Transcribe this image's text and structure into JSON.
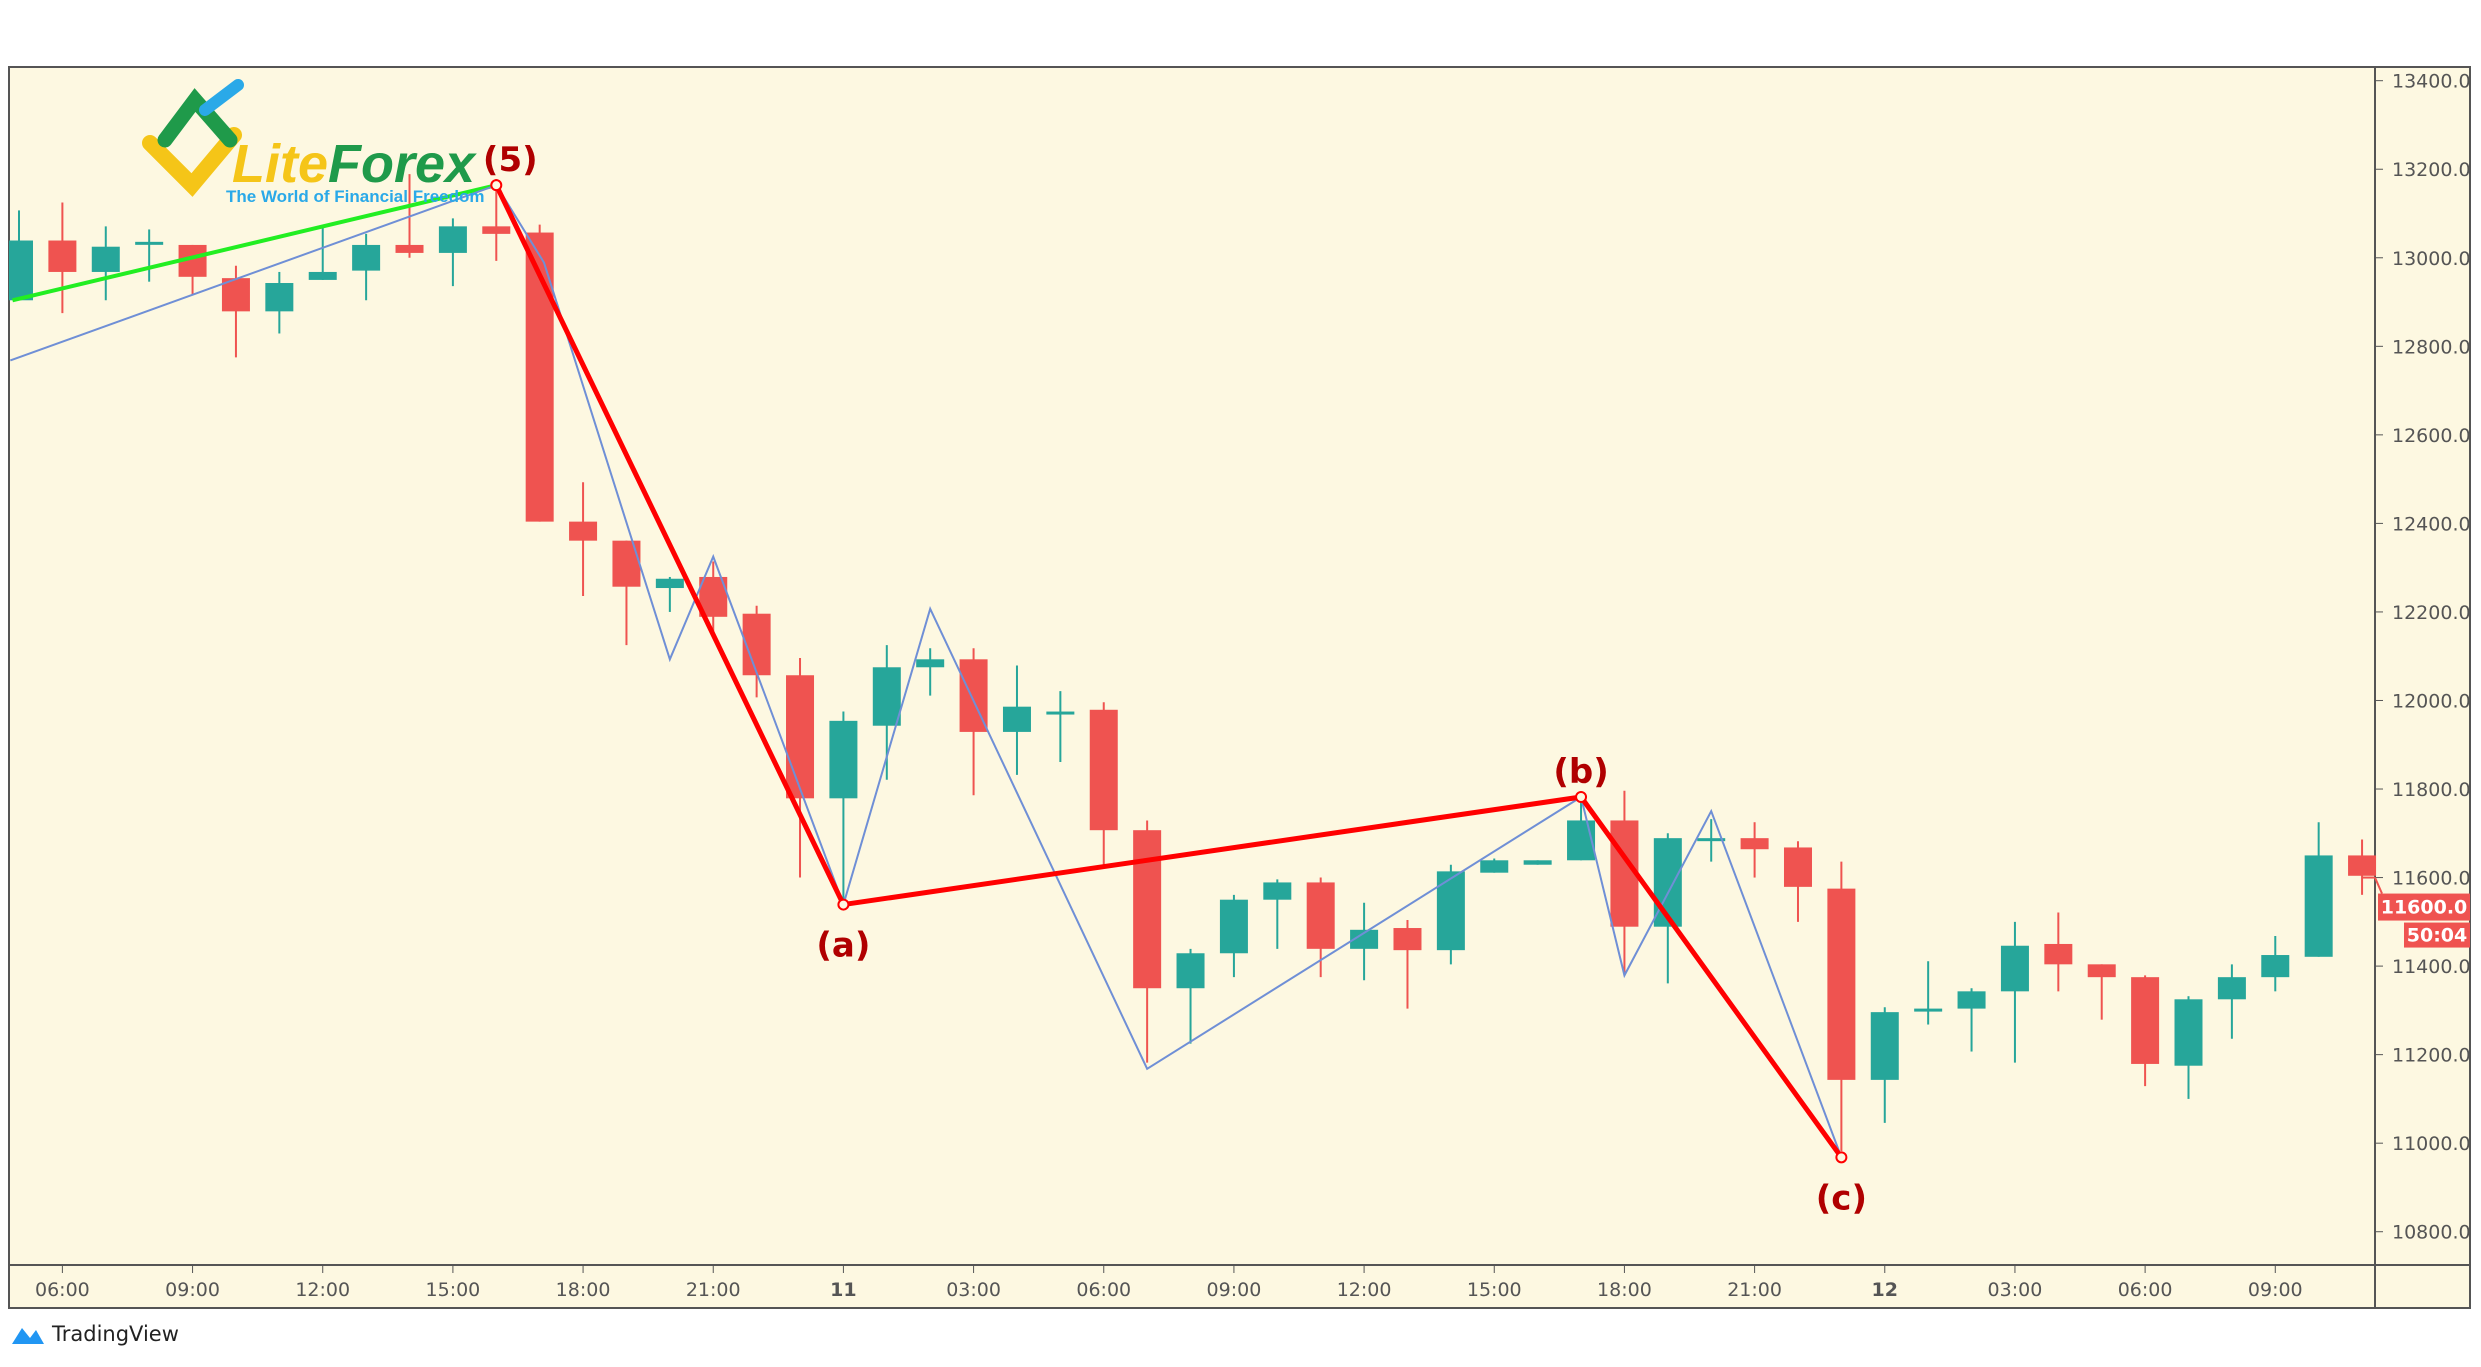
{
  "brand": {
    "logo_text_1": "Lite",
    "logo_text_2": "Forex",
    "tagline": "The World of Financial Freedom",
    "footer": "TradingView"
  },
  "colors": {
    "background": "#fdf8e1",
    "up": "#26a69a",
    "down": "#ef5350",
    "wave": "#ff0000",
    "zigzag": "#6f8fd6",
    "trend": "#22ee22",
    "label": "#b00000"
  },
  "chart_data": {
    "type": "candlestick",
    "ylim": [
      10700,
      13450
    ],
    "yticks": [
      13400,
      13200,
      13000,
      12800,
      12600,
      12400,
      12200,
      12000,
      11800,
      11600,
      11400,
      11200,
      11000,
      10800
    ],
    "ytick_labels": [
      "13400.0",
      "13200.0",
      "13000.0",
      "12800.0",
      "12600.0",
      "12400.0",
      "12200.0",
      "12000.0",
      "11800.0",
      "11600.0",
      "11400.0",
      "11200.0",
      "11000.0",
      "10800.0"
    ],
    "xticks": [
      {
        "i": 1,
        "label": "06:00"
      },
      {
        "i": 4,
        "label": "09:00"
      },
      {
        "i": 7,
        "label": "12:00"
      },
      {
        "i": 10,
        "label": "15:00"
      },
      {
        "i": 13,
        "label": "18:00"
      },
      {
        "i": 16,
        "label": "21:00"
      },
      {
        "i": 19,
        "label": "11"
      },
      {
        "i": 22,
        "label": "03:00"
      },
      {
        "i": 25,
        "label": "06:00"
      },
      {
        "i": 28,
        "label": "09:00"
      },
      {
        "i": 31,
        "label": "12:00"
      },
      {
        "i": 34,
        "label": "15:00"
      },
      {
        "i": 37,
        "label": "18:00"
      },
      {
        "i": 40,
        "label": "21:00"
      },
      {
        "i": 43,
        "label": "12"
      },
      {
        "i": 46,
        "label": "03:00"
      },
      {
        "i": 49,
        "label": "06:00"
      },
      {
        "i": 52,
        "label": "09:00"
      }
    ],
    "ohlc": [
      [
        12904,
        13107,
        12904,
        13039
      ],
      [
        13039,
        13125,
        12875,
        12968
      ],
      [
        12968,
        13071,
        12904,
        13025
      ],
      [
        13036,
        13064,
        12946,
        13036
      ],
      [
        13029,
        13029,
        12918,
        12957
      ],
      [
        12954,
        12982,
        12775,
        12879
      ],
      [
        12879,
        12968,
        12829,
        12943
      ],
      [
        12950,
        13071,
        12950,
        12968
      ],
      [
        12971,
        13054,
        12904,
        13029
      ],
      [
        13029,
        13189,
        13000,
        13011
      ],
      [
        13011,
        13089,
        12936,
        13071
      ],
      [
        13071,
        13178,
        12993,
        13054
      ],
      [
        13057,
        13075,
        12404,
        12404
      ],
      [
        12404,
        12493,
        12236,
        12361
      ],
      [
        12361,
        12361,
        12125,
        12257
      ],
      [
        12254,
        12279,
        12200,
        12275
      ],
      [
        12279,
        12314,
        12150,
        12189
      ],
      [
        12196,
        12214,
        12007,
        12057
      ],
      [
        12057,
        12096,
        11600,
        11779
      ],
      [
        11779,
        11975,
        11529,
        11954
      ],
      [
        11943,
        12125,
        11821,
        12075
      ],
      [
        12075,
        12118,
        12011,
        12093
      ],
      [
        12093,
        12118,
        11786,
        11929
      ],
      [
        11929,
        12079,
        11832,
        11986
      ],
      [
        11975,
        12021,
        11861,
        11975
      ],
      [
        11979,
        11996,
        11621,
        11707
      ],
      [
        11707,
        11729,
        11182,
        11350
      ],
      [
        11350,
        11439,
        11225,
        11429
      ],
      [
        11429,
        11561,
        11375,
        11550
      ],
      [
        11550,
        11596,
        11439,
        11589
      ],
      [
        11589,
        11600,
        11375,
        11439
      ],
      [
        11439,
        11543,
        11368,
        11482
      ],
      [
        11486,
        11504,
        11304,
        11436
      ],
      [
        11436,
        11629,
        11404,
        11614
      ],
      [
        11611,
        11643,
        11611,
        11639
      ],
      [
        11629,
        11639,
        11629,
        11639
      ],
      [
        11639,
        11779,
        11639,
        11729
      ],
      [
        11729,
        11796,
        11379,
        11489
      ],
      [
        11489,
        11700,
        11361,
        11689
      ],
      [
        11689,
        11732,
        11636,
        11689
      ],
      [
        11689,
        11725,
        11600,
        11664
      ],
      [
        11668,
        11682,
        11500,
        11579
      ],
      [
        11575,
        11636,
        10982,
        11143
      ],
      [
        11143,
        11307,
        11046,
        11296
      ],
      [
        11304,
        11411,
        11268,
        11304
      ],
      [
        11304,
        11350,
        11207,
        11343
      ],
      [
        11343,
        11500,
        11182,
        11446
      ],
      [
        11450,
        11521,
        11343,
        11404
      ],
      [
        11404,
        11404,
        11279,
        11375
      ],
      [
        11375,
        11379,
        11129,
        11179
      ],
      [
        11175,
        11332,
        11100,
        11325
      ],
      [
        11325,
        11404,
        11236,
        11375
      ],
      [
        11375,
        11468,
        11343,
        11425
      ],
      [
        11421,
        11725,
        11421,
        11650
      ],
      [
        11650,
        11686,
        11561,
        11604
      ]
    ],
    "trend_line": [
      [
        -0.15,
        12904
      ],
      [
        11,
        13164
      ]
    ],
    "zigzag": [
      [
        -0.2,
        12768
      ],
      [
        11,
        13164
      ],
      [
        12.1,
        12989
      ],
      [
        15,
        12093
      ],
      [
        16,
        12325
      ],
      [
        19,
        11539
      ],
      [
        21,
        12207
      ],
      [
        26,
        11168
      ],
      [
        36,
        11782
      ],
      [
        37,
        11379
      ],
      [
        39,
        11750
      ],
      [
        42,
        10968
      ]
    ],
    "wave": [
      {
        "i": 11,
        "price": 13164,
        "label": "(5)"
      },
      {
        "i": 19,
        "price": 11539,
        "label": "(a)"
      },
      {
        "i": 36,
        "price": 11782,
        "label": "(b)"
      },
      {
        "i": 42,
        "price": 10968,
        "label": "(c)"
      }
    ],
    "last_price": {
      "value": 11600,
      "label": "11600.0",
      "countdown": "50:04"
    }
  }
}
